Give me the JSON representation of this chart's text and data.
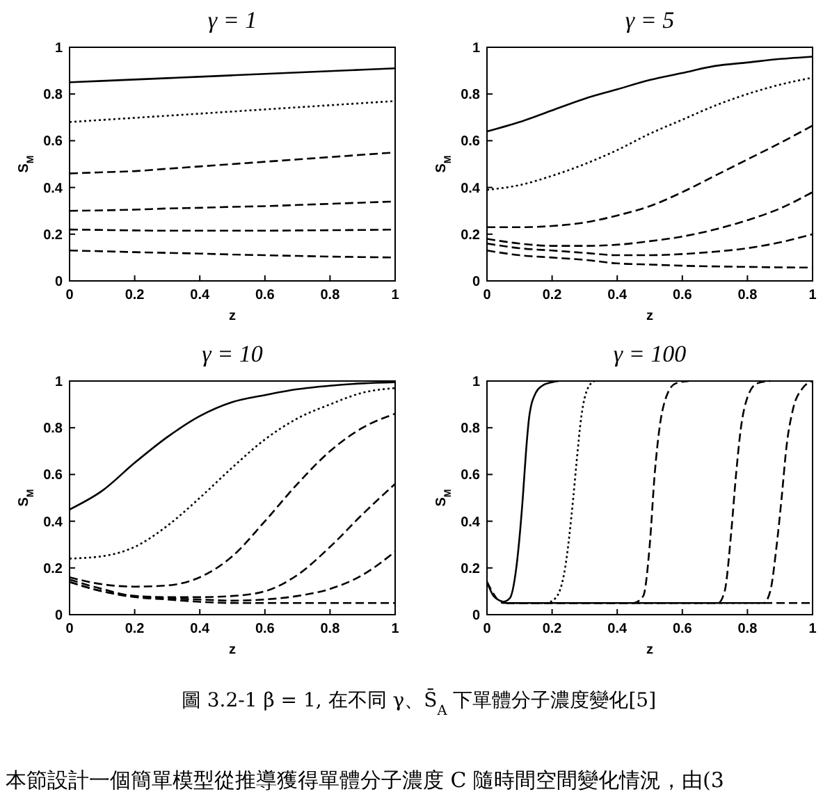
{
  "chart_data": [
    {
      "type": "line",
      "title": "γ = 1",
      "xlabel": "z",
      "ylabel": "S$_{M}$",
      "xlim": [
        0,
        1
      ],
      "ylim": [
        0,
        1
      ],
      "xticks": [
        0,
        0.2,
        0.4,
        0.6,
        0.8,
        1
      ],
      "yticks": [
        0,
        0.2,
        0.4,
        0.6,
        0.8,
        1
      ],
      "x": [
        0,
        0.1,
        0.2,
        0.3,
        0.4,
        0.5,
        0.6,
        0.7,
        0.8,
        0.9,
        1
      ],
      "series": [
        {
          "color": "#000000",
          "line_style": "solid",
          "values": [
            0.85,
            0.856,
            0.862,
            0.868,
            0.874,
            0.88,
            0.886,
            0.892,
            0.898,
            0.904,
            0.91
          ]
        },
        {
          "color": "#000000",
          "line_style": "dotted",
          "values": [
            0.68,
            0.689,
            0.698,
            0.707,
            0.716,
            0.725,
            0.734,
            0.743,
            0.752,
            0.761,
            0.77
          ]
        },
        {
          "color": "#000000",
          "line_style": "dashed",
          "values": [
            0.46,
            0.465,
            0.47,
            0.48,
            0.49,
            0.5,
            0.51,
            0.52,
            0.53,
            0.54,
            0.55
          ]
        },
        {
          "color": "#000000",
          "line_style": "dashed",
          "values": [
            0.3,
            0.302,
            0.305,
            0.31,
            0.313,
            0.317,
            0.32,
            0.325,
            0.33,
            0.335,
            0.34
          ]
        },
        {
          "color": "#000000",
          "line_style": "dashed",
          "values": [
            0.22,
            0.218,
            0.216,
            0.215,
            0.215,
            0.215,
            0.215,
            0.216,
            0.217,
            0.218,
            0.22
          ]
        },
        {
          "color": "#000000",
          "line_style": "dashed",
          "values": [
            0.13,
            0.127,
            0.123,
            0.12,
            0.117,
            0.113,
            0.11,
            0.107,
            0.104,
            0.102,
            0.1
          ]
        }
      ]
    },
    {
      "type": "line",
      "title": "γ = 5",
      "xlabel": "z",
      "ylabel": "S$_{M}$",
      "xlim": [
        0,
        1
      ],
      "ylim": [
        0,
        1
      ],
      "xticks": [
        0,
        0.2,
        0.4,
        0.6,
        0.8,
        1
      ],
      "yticks": [
        0,
        0.2,
        0.4,
        0.6,
        0.8,
        1
      ],
      "x": [
        0,
        0.1,
        0.2,
        0.3,
        0.4,
        0.5,
        0.6,
        0.7,
        0.8,
        0.9,
        1
      ],
      "series": [
        {
          "color": "#000000",
          "line_style": "solid",
          "values": [
            0.64,
            0.68,
            0.73,
            0.78,
            0.82,
            0.86,
            0.89,
            0.92,
            0.935,
            0.95,
            0.96
          ]
        },
        {
          "color": "#000000",
          "line_style": "dotted",
          "values": [
            0.39,
            0.41,
            0.45,
            0.5,
            0.56,
            0.63,
            0.69,
            0.75,
            0.8,
            0.84,
            0.87
          ]
        },
        {
          "color": "#000000",
          "line_style": "dashed",
          "values": [
            0.23,
            0.23,
            0.235,
            0.25,
            0.28,
            0.32,
            0.38,
            0.45,
            0.52,
            0.59,
            0.665
          ]
        },
        {
          "color": "#000000",
          "line_style": "dashed",
          "values": [
            0.18,
            0.16,
            0.15,
            0.15,
            0.155,
            0.17,
            0.19,
            0.22,
            0.26,
            0.31,
            0.38
          ]
        },
        {
          "color": "#000000",
          "line_style": "dashed",
          "values": [
            0.16,
            0.14,
            0.13,
            0.12,
            0.11,
            0.11,
            0.115,
            0.125,
            0.14,
            0.165,
            0.2
          ]
        },
        {
          "color": "#000000",
          "line_style": "dashed",
          "values": [
            0.13,
            0.11,
            0.1,
            0.09,
            0.075,
            0.07,
            0.065,
            0.062,
            0.06,
            0.058,
            0.057
          ]
        }
      ]
    },
    {
      "type": "line",
      "title": "γ = 10",
      "xlabel": "z",
      "ylabel": "S$_{M}$",
      "xlim": [
        0,
        1
      ],
      "ylim": [
        0,
        1
      ],
      "xticks": [
        0,
        0.2,
        0.4,
        0.6,
        0.8,
        1
      ],
      "yticks": [
        0,
        0.2,
        0.4,
        0.6,
        0.8,
        1
      ],
      "x": [
        0,
        0.1,
        0.2,
        0.3,
        0.4,
        0.5,
        0.6,
        0.7,
        0.8,
        0.9,
        1
      ],
      "series": [
        {
          "color": "#000000",
          "line_style": "solid",
          "values": [
            0.45,
            0.53,
            0.65,
            0.76,
            0.85,
            0.91,
            0.94,
            0.965,
            0.98,
            0.99,
            0.995
          ]
        },
        {
          "color": "#000000",
          "line_style": "dotted",
          "values": [
            0.24,
            0.25,
            0.29,
            0.38,
            0.5,
            0.63,
            0.75,
            0.84,
            0.9,
            0.95,
            0.97
          ]
        },
        {
          "color": "#000000",
          "line_style": "dashed",
          "values": [
            0.16,
            0.13,
            0.12,
            0.125,
            0.16,
            0.25,
            0.4,
            0.56,
            0.7,
            0.8,
            0.86
          ]
        },
        {
          "color": "#000000",
          "line_style": "dashed",
          "values": [
            0.15,
            0.11,
            0.08,
            0.075,
            0.075,
            0.08,
            0.1,
            0.17,
            0.29,
            0.43,
            0.56
          ]
        },
        {
          "color": "#000000",
          "line_style": "dashed",
          "values": [
            0.14,
            0.1,
            0.08,
            0.07,
            0.065,
            0.06,
            0.065,
            0.08,
            0.11,
            0.17,
            0.27
          ]
        },
        {
          "color": "#000000",
          "line_style": "dashed",
          "values": [
            0.14,
            0.1,
            0.075,
            0.065,
            0.055,
            0.05,
            0.05,
            0.05,
            0.05,
            0.05,
            0.05
          ]
        }
      ]
    },
    {
      "type": "line",
      "title": "γ = 100",
      "xlabel": "z",
      "ylabel": "S$_{M}$",
      "xlim": [
        0,
        1
      ],
      "ylim": [
        0,
        1
      ],
      "xticks": [
        0,
        0.2,
        0.4,
        0.6,
        0.8,
        1
      ],
      "yticks": [
        0,
        0.2,
        0.4,
        0.6,
        0.8,
        1
      ],
      "annotations": [
        "圖 3.2-1 β = 1, 在不同 γ、S̄$_{A}$ 下單體分子濃度變化[5]",
        "本節設計一個簡單模型從推導獲得單體分子濃度 C 隨時間空間變化情況，由(3"
      ],
      "series": [
        {
          "color": "#000000",
          "line_style": "solid",
          "x": [
            0,
            0.02,
            0.04,
            0.05,
            0.07,
            0.09,
            0.11,
            0.12,
            0.13,
            0.15,
            0.17,
            0.2,
            0.22
          ],
          "values": [
            0.14,
            0.08,
            0.06,
            0.055,
            0.07,
            0.2,
            0.5,
            0.7,
            0.85,
            0.95,
            0.98,
            0.995,
            1
          ]
        },
        {
          "color": "#000000",
          "line_style": "dotted",
          "x": [
            0.06,
            0.18,
            0.21,
            0.24,
            0.265,
            0.275,
            0.29,
            0.31,
            0.33
          ],
          "values": [
            0.05,
            0.05,
            0.07,
            0.2,
            0.5,
            0.65,
            0.85,
            0.97,
            1
          ]
        },
        {
          "color": "#000000",
          "line_style": "dashed",
          "x": [
            0.06,
            0.45,
            0.48,
            0.5,
            0.515,
            0.53,
            0.55,
            0.58,
            0.62
          ],
          "values": [
            0.05,
            0.05,
            0.08,
            0.3,
            0.6,
            0.8,
            0.93,
            0.99,
            1
          ]
        },
        {
          "color": "#000000",
          "line_style": "dashed",
          "x": [
            0.06,
            0.71,
            0.73,
            0.75,
            0.765,
            0.78,
            0.8,
            0.83,
            0.87
          ],
          "values": [
            0.05,
            0.05,
            0.1,
            0.35,
            0.6,
            0.8,
            0.93,
            0.99,
            1
          ]
        },
        {
          "color": "#000000",
          "line_style": "dashed",
          "x": [
            0.06,
            0.85,
            0.87,
            0.89,
            0.905,
            0.92,
            0.94,
            0.97,
            1
          ],
          "values": [
            0.05,
            0.05,
            0.1,
            0.3,
            0.5,
            0.72,
            0.88,
            0.97,
            1
          ]
        },
        {
          "color": "#000000",
          "line_style": "dashed",
          "x": [
            0,
            0.05,
            1
          ],
          "values": [
            0.14,
            0.05,
            0.05
          ]
        }
      ]
    }
  ]
}
